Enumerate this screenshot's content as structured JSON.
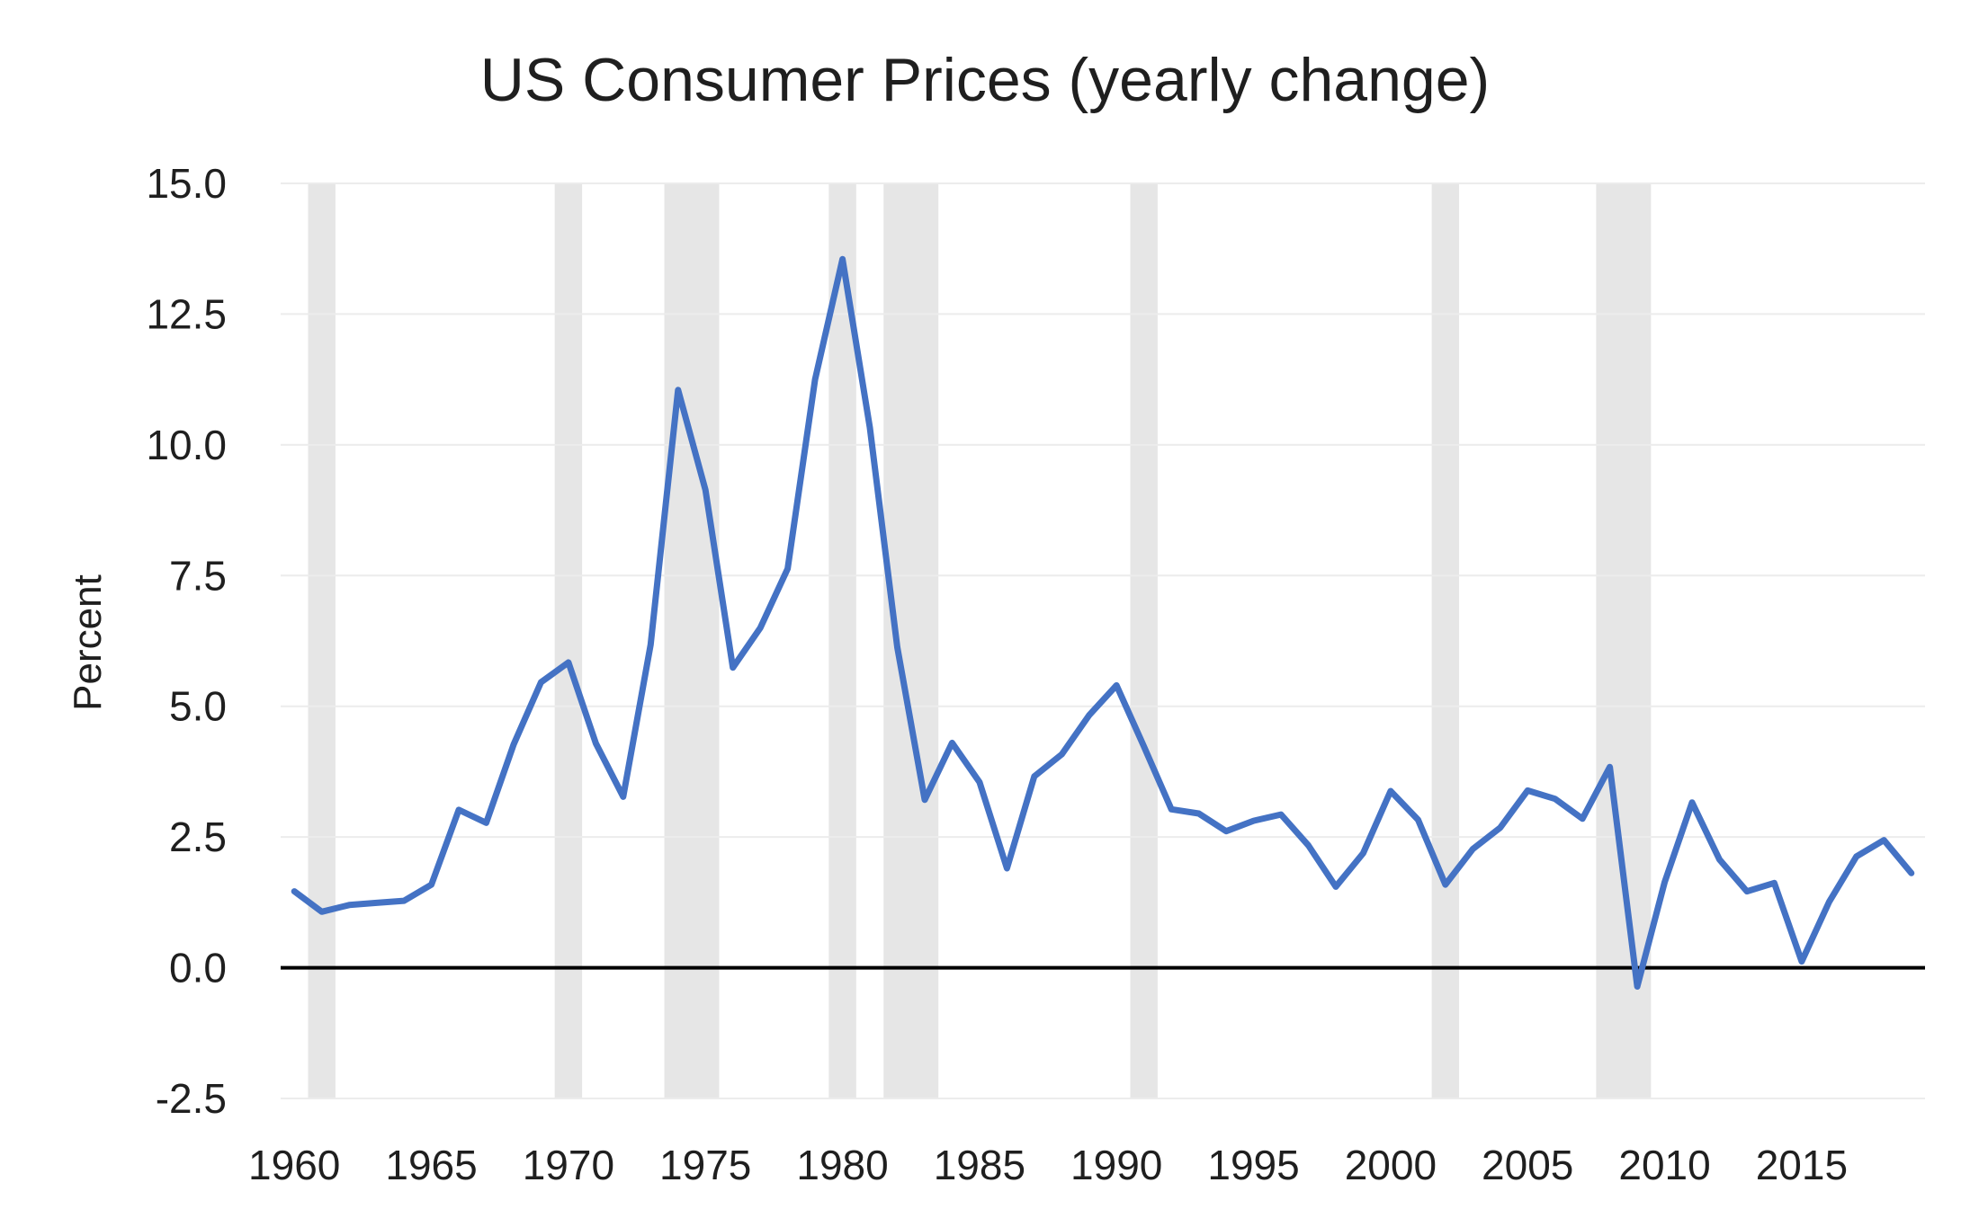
{
  "chart_data": {
    "type": "line",
    "title": "US Consumer Prices (yearly change)",
    "xlabel": "",
    "ylabel": "Percent",
    "xlim": [
      1959.5,
      2019.5
    ],
    "ylim": [
      -2.5,
      15.0
    ],
    "y_ticks": [
      "15.0",
      "12.5",
      "10.0",
      "7.5",
      "5.0",
      "2.5",
      "0.0",
      "-2.5"
    ],
    "y_tick_values": [
      15.0,
      12.5,
      10.0,
      7.5,
      5.0,
      2.5,
      0.0,
      -2.5
    ],
    "x_ticks": [
      "1960",
      "1965",
      "1970",
      "1975",
      "1980",
      "1985",
      "1990",
      "1995",
      "2000",
      "2005",
      "2010",
      "2015"
    ],
    "x_tick_values": [
      1960,
      1965,
      1970,
      1975,
      1980,
      1985,
      1990,
      1995,
      2000,
      2005,
      2010,
      2015
    ],
    "grid": "horizontal",
    "zero_line": true,
    "colors": {
      "line": "#4472c4",
      "recession": "#e6e6e6",
      "grid": "#ececec",
      "zero_line": "#000000"
    },
    "recessions": [
      [
        1960.5,
        1961.5
      ],
      [
        1969.5,
        1970.5
      ],
      [
        1973.5,
        1975.5
      ],
      [
        1979.5,
        1980.5
      ],
      [
        1981.5,
        1983.5
      ],
      [
        1990.5,
        1991.5
      ],
      [
        2001.5,
        2002.5
      ],
      [
        2007.5,
        2009.5
      ]
    ],
    "series": [
      {
        "x": [
          1960,
          1961,
          1962,
          1963,
          1964,
          1965,
          1966,
          1967,
          1968,
          1969,
          1970,
          1971,
          1972,
          1973,
          1974,
          1975,
          1976,
          1977,
          1978,
          1979,
          1980,
          1981,
          1982,
          1983,
          1984,
          1985,
          1986,
          1987,
          1988,
          1989,
          1990,
          1991,
          1992,
          1993,
          1994,
          1995,
          1996,
          1997,
          1998,
          1999,
          2000,
          2001,
          2002,
          2003,
          2004,
          2005,
          2006,
          2007,
          2008,
          2009,
          2010,
          2011,
          2012,
          2013,
          2014,
          2015,
          2016,
          2017,
          2018,
          2019
        ],
        "values": [
          1.46,
          1.07,
          1.2,
          1.24,
          1.28,
          1.59,
          3.02,
          2.77,
          4.27,
          5.46,
          5.84,
          4.29,
          3.27,
          6.18,
          11.05,
          9.14,
          5.74,
          6.5,
          7.63,
          11.25,
          13.55,
          10.33,
          6.13,
          3.21,
          4.3,
          3.55,
          1.9,
          3.66,
          4.08,
          4.83,
          5.4,
          4.23,
          3.03,
          2.95,
          2.61,
          2.81,
          2.93,
          2.34,
          1.55,
          2.19,
          3.38,
          2.83,
          1.59,
          2.27,
          2.68,
          3.39,
          3.23,
          2.85,
          3.84,
          -0.36,
          1.64,
          3.16,
          2.07,
          1.46,
          1.62,
          0.12,
          1.26,
          2.13,
          2.44,
          1.81
        ]
      }
    ]
  }
}
